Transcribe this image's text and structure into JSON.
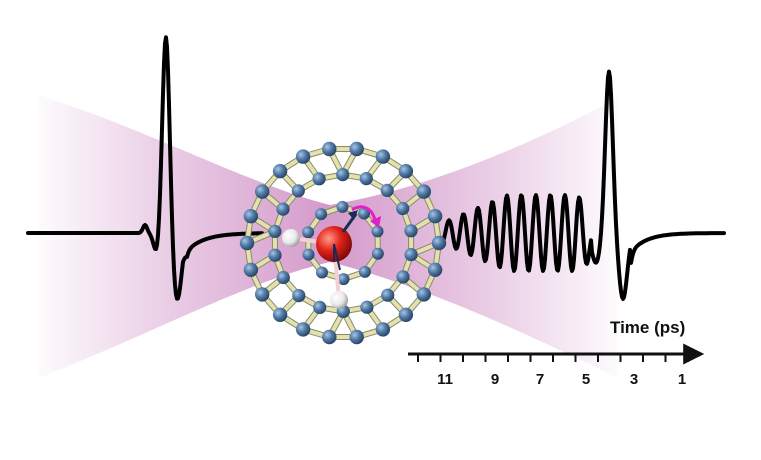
{
  "axis": {
    "title": "Time (ps)",
    "direction": "reversed (time decreases left to right)",
    "tick_labels": [
      "11",
      "9",
      "7",
      "5",
      "3",
      "1"
    ]
  },
  "colors": {
    "waveform": "#000000",
    "beam": "#b0479f",
    "cage_atom": "#4f79a6",
    "cage_bond": "#e4e1b0",
    "oxygen_atom": "#e02018",
    "hydrogen_atom": "#f2f2f2",
    "rotation_arrow": "#e020c8"
  },
  "molecule": {
    "cage": "C60 fullerene",
    "guest": "H2O"
  }
}
